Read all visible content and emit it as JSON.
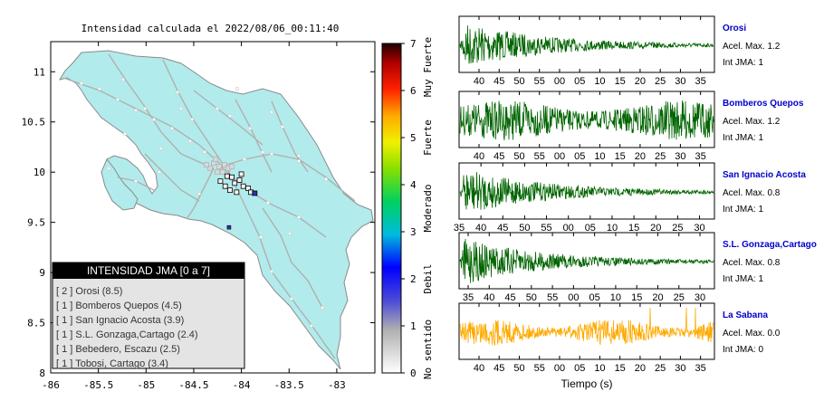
{
  "map": {
    "title": "Intensidad calculada el 2022/08/06_00:11:40",
    "x_ticks": [
      "-86",
      "-85.5",
      "-85",
      "-84.5",
      "-84",
      "-83.5",
      "-83"
    ],
    "y_ticks": [
      "11",
      "10.5",
      "10",
      "9.5",
      "9",
      "8.5",
      "8"
    ],
    "land_color": "#b2ebeb",
    "legend": {
      "title": "INTENSIDAD JMA [0 a 7]",
      "entries": [
        {
          "text": "[ 2 ]  Orosi (8.5)",
          "color": "#333333"
        },
        {
          "text": "[ 1 ]  Bomberos Quepos (4.5)",
          "color": "#333333"
        },
        {
          "text": "[ 1 ]  San Ignacio Acosta (3.9)",
          "color": "#333333"
        },
        {
          "text": "[ 1 ]  S.L. Gonzaga,Cartago (2.4)",
          "color": "#333333"
        },
        {
          "text": "[ 1 ]  Bebedero, Escazu (2.5)",
          "color": "#333333"
        },
        {
          "text": "[ 1 ]  Tobosi, Cartago (3.4)",
          "color": "#333333"
        }
      ]
    },
    "stations": [
      {
        "lon": -84.07,
        "lat": 9.89
      },
      {
        "lon": -84.02,
        "lat": 9.92
      },
      {
        "lon": -84.17,
        "lat": 9.86
      },
      {
        "lon": -84.12,
        "lat": 9.82
      },
      {
        "lon": -84.22,
        "lat": 9.91
      },
      {
        "lon": -83.98,
        "lat": 9.86
      },
      {
        "lon": -84.05,
        "lat": 9.8
      },
      {
        "lon": -83.93,
        "lat": 9.84
      },
      {
        "lon": -84.1,
        "lat": 9.95
      },
      {
        "lon": -83.9,
        "lat": 9.8
      },
      {
        "lon": -84.15,
        "lat": 9.96
      },
      {
        "lon": -84.0,
        "lat": 9.98
      }
    ],
    "highlight_station": {
      "lon": -83.86,
      "lat": 9.79
    }
  },
  "colorbar": {
    "ticks": [
      "0",
      "1",
      "2",
      "3",
      "4",
      "5",
      "6",
      "7"
    ],
    "labels": [
      "No sentido",
      "Debil",
      "Moderado",
      "Fuerte",
      "Muy Fuerte"
    ]
  },
  "traces": [
    {
      "name": "Orosi",
      "accel": "Acel. Max. 1.2",
      "int": "Int JMA: 1",
      "color": "#006400",
      "envelope": "decay",
      "ticks": [
        "40",
        "45",
        "50",
        "55",
        "00",
        "05",
        "10",
        "15",
        "20",
        "25",
        "30",
        "35"
      ]
    },
    {
      "name": "Bomberos Quepos",
      "accel": "Acel. Max. 1.2",
      "int": "Int JMA: 1",
      "color": "#006400",
      "envelope": "steady",
      "ticks": [
        "40",
        "45",
        "50",
        "55",
        "00",
        "05",
        "10",
        "15",
        "20",
        "25",
        "30",
        "35"
      ]
    },
    {
      "name": "San Ignacio Acosta",
      "accel": "Acel. Max. 0.8",
      "int": "Int JMA: 1",
      "color": "#006400",
      "envelope": "decay",
      "ticks": [
        "35",
        "40",
        "45",
        "50",
        "55",
        "00",
        "05",
        "10",
        "15",
        "20",
        "25",
        "30"
      ]
    },
    {
      "name": "S.L. Gonzaga,Cartago",
      "accel": "Acel. Max. 0.8",
      "int": "Int JMA: 1",
      "color": "#006400",
      "envelope": "decay",
      "ticks": [
        "35",
        "40",
        "45",
        "50",
        "55",
        "00",
        "05",
        "10",
        "15",
        "20",
        "25",
        "30"
      ]
    },
    {
      "name": "La Sabana",
      "accel": "Acel. Max. 0.0",
      "int": "Int JMA: 0",
      "color": "#ffaa00",
      "envelope": "noise",
      "ticks": [
        "40",
        "45",
        "50",
        "55",
        "00",
        "05",
        "10",
        "15",
        "20",
        "25",
        "30",
        "35"
      ]
    }
  ],
  "time_label": "Tiempo (s)",
  "chart_data": {
    "type": "line",
    "title": "Intensidad calculada el 2022/08/06_00:11:40",
    "xlabel": "Tiempo (s)",
    "series": [
      {
        "name": "Orosi",
        "accel_max": 1.2,
        "int_jma": 1
      },
      {
        "name": "Bomberos Quepos",
        "accel_max": 1.2,
        "int_jma": 1
      },
      {
        "name": "San Ignacio Acosta",
        "accel_max": 0.8,
        "int_jma": 1
      },
      {
        "name": "S.L. Gonzaga,Cartago",
        "accel_max": 0.8,
        "int_jma": 1
      },
      {
        "name": "La Sabana",
        "accel_max": 0.0,
        "int_jma": 0
      }
    ],
    "map_xlim": [
      -86,
      -82.6
    ],
    "map_ylim": [
      8,
      11.3
    ]
  }
}
